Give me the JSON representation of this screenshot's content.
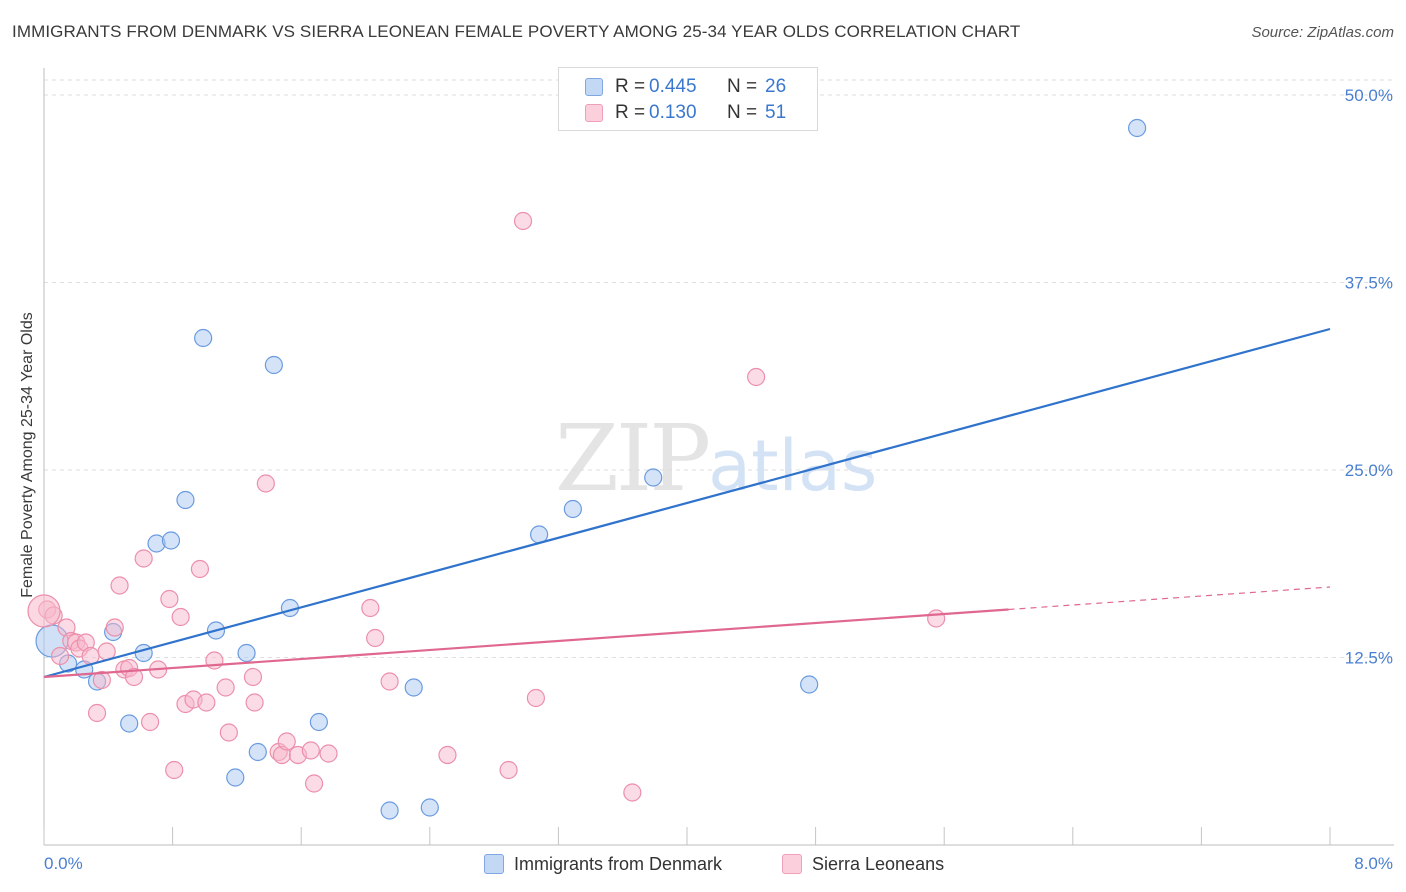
{
  "title": "IMMIGRANTS FROM DENMARK VS SIERRA LEONEAN FEMALE POVERTY AMONG 25-34 YEAR OLDS CORRELATION CHART",
  "source": "Source: ZipAtlas.com",
  "watermark": {
    "zip": "ZIP",
    "atlas": "atlas"
  },
  "legend": {
    "rows": [
      {
        "r_label": "R =",
        "r_value": "0.445",
        "n_label": "N =",
        "n_value": "26",
        "color": "#a9c8f0"
      },
      {
        "r_label": "R =",
        "r_value": "0.130",
        "n_label": "N =",
        "n_value": "51",
        "color": "#f7b8cb"
      }
    ]
  },
  "bottom_legend": [
    "Immigrants from Denmark",
    "Sierra Leoneans"
  ],
  "chart_data": {
    "type": "scatter",
    "title": "IMMIGRANTS FROM DENMARK VS SIERRA LEONEAN FEMALE POVERTY AMONG 25-34 YEAR OLDS CORRELATION CHART",
    "xlabel": "",
    "ylabel": "Female Poverty Among 25-34 Year Olds",
    "xlim": [
      0,
      8
    ],
    "ylim": [
      0,
      51
    ],
    "x_tick_labels": [
      "0.0%",
      "8.0%"
    ],
    "y_ticks": [
      12.5,
      25.0,
      37.5,
      50.0
    ],
    "y_tick_labels": [
      "12.5%",
      "25.0%",
      "37.5%",
      "50.0%"
    ],
    "grid": "horizontal dashed",
    "series": [
      {
        "name": "Immigrants from Denmark",
        "color": "#a9c8f0",
        "stroke": "#6a9be0",
        "trend_color": "#2f73cc",
        "trend": {
          "x0": 0.0,
          "y0": 11.2,
          "x1": 8.0,
          "y1": 34.4
        },
        "points": [
          [
            0.05,
            13.6
          ],
          [
            0.15,
            12.1
          ],
          [
            0.25,
            11.7
          ],
          [
            0.33,
            10.9
          ],
          [
            0.43,
            14.2
          ],
          [
            0.53,
            8.1
          ],
          [
            0.62,
            12.8
          ],
          [
            0.7,
            20.1
          ],
          [
            0.79,
            20.3
          ],
          [
            0.88,
            23.0
          ],
          [
            0.99,
            33.8
          ],
          [
            1.07,
            14.3
          ],
          [
            1.26,
            12.8
          ],
          [
            1.33,
            6.2
          ],
          [
            1.43,
            32.0
          ],
          [
            1.53,
            15.8
          ],
          [
            1.71,
            8.2
          ],
          [
            1.19,
            4.5
          ],
          [
            2.15,
            2.3
          ],
          [
            2.3,
            10.5
          ],
          [
            2.4,
            2.5
          ],
          [
            3.08,
            20.7
          ],
          [
            3.29,
            22.4
          ],
          [
            3.79,
            24.5
          ],
          [
            4.76,
            10.7
          ],
          [
            6.8,
            47.8
          ]
        ]
      },
      {
        "name": "Sierra Leoneans",
        "color": "#f7b8cb",
        "stroke": "#ec8fab",
        "trend_color": "#e0688f",
        "trend": {
          "x0": 0.0,
          "y0": 11.2,
          "x1": 6.0,
          "y1": 15.7
        },
        "trend_dashed": {
          "x0": 6.0,
          "y0": 15.7,
          "x1": 8.0,
          "y1": 17.2
        },
        "points": [
          [
            0.02,
            15.7
          ],
          [
            0.06,
            15.3
          ],
          [
            0.1,
            12.6
          ],
          [
            0.14,
            14.5
          ],
          [
            0.17,
            13.6
          ],
          [
            0.2,
            13.5
          ],
          [
            0.22,
            13.1
          ],
          [
            0.26,
            13.5
          ],
          [
            0.29,
            12.6
          ],
          [
            0.33,
            8.8
          ],
          [
            0.36,
            11.0
          ],
          [
            0.39,
            12.9
          ],
          [
            0.44,
            14.5
          ],
          [
            0.47,
            17.3
          ],
          [
            0.5,
            11.7
          ],
          [
            0.53,
            11.8
          ],
          [
            0.56,
            11.2
          ],
          [
            0.62,
            19.1
          ],
          [
            0.66,
            8.2
          ],
          [
            0.71,
            11.7
          ],
          [
            0.78,
            16.4
          ],
          [
            0.81,
            5.0
          ],
          [
            0.85,
            15.2
          ],
          [
            0.88,
            9.4
          ],
          [
            0.93,
            9.7
          ],
          [
            0.97,
            18.4
          ],
          [
            1.01,
            9.5
          ],
          [
            1.06,
            12.3
          ],
          [
            1.13,
            10.5
          ],
          [
            1.15,
            7.5
          ],
          [
            1.3,
            11.2
          ],
          [
            1.31,
            9.5
          ],
          [
            1.38,
            24.1
          ],
          [
            1.46,
            6.2
          ],
          [
            1.48,
            6.0
          ],
          [
            1.51,
            6.9
          ],
          [
            1.58,
            6.0
          ],
          [
            1.66,
            6.3
          ],
          [
            1.68,
            4.1
          ],
          [
            1.77,
            6.1
          ],
          [
            2.03,
            15.8
          ],
          [
            2.06,
            13.8
          ],
          [
            2.15,
            10.9
          ],
          [
            2.51,
            6.0
          ],
          [
            2.98,
            41.6
          ],
          [
            2.89,
            5.0
          ],
          [
            3.06,
            9.8
          ],
          [
            3.66,
            3.5
          ],
          [
            4.43,
            31.2
          ],
          [
            5.55,
            15.1
          ],
          [
            0.0,
            15.6
          ]
        ]
      }
    ]
  }
}
